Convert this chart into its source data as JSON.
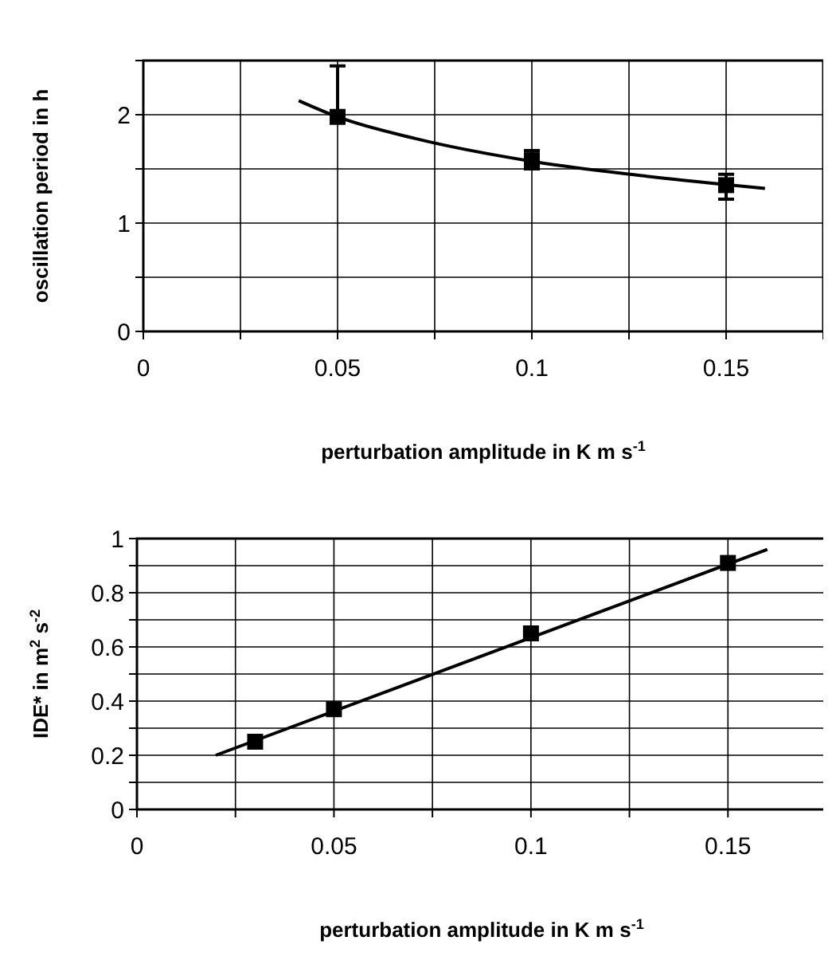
{
  "chart_data": [
    {
      "type": "scatter",
      "xlabel": "perturbation amplitude in K m s$^{-1}$",
      "ylabel": "oscillation period in h",
      "xlim": [
        0,
        0.175
      ],
      "xticks": [
        0,
        {
          "value": 0.025,
          "label": null
        },
        0.05,
        {
          "value": 0.075,
          "label": null
        },
        0.1,
        {
          "value": 0.125,
          "label": null
        },
        0.15,
        {
          "value": 0.175,
          "label": null
        }
      ],
      "ylim": [
        0,
        2.5
      ],
      "yticks": [
        0,
        {
          "value": 0.5,
          "label": null
        },
        1,
        {
          "value": 1.5,
          "label": null
        },
        2,
        {
          "value": 2.5,
          "label": null
        }
      ],
      "grid": true,
      "series": [
        {
          "type": "line",
          "color": "#000000",
          "marker": "none",
          "line_style": "solid",
          "x": [
            0.04,
            0.05,
            0.07,
            0.1,
            0.13,
            0.16
          ],
          "values": [
            2.13,
            1.98,
            1.78,
            1.57,
            1.43,
            1.32
          ]
        },
        {
          "color": "#000000",
          "marker": "square",
          "x": [
            0.05,
            0.1,
            0.15
          ],
          "values": [
            1.98,
            1.58,
            1.35
          ],
          "errors": [
            [
              1.93,
              2.45
            ],
            [
              1.5,
              1.67
            ],
            [
              1.22,
              1.45
            ]
          ]
        }
      ]
    },
    {
      "type": "scatter",
      "xlabel": "perturbation amplitude in K m s$^{-1}$",
      "ylabel": "IDE* in m$^{2}$ s$^{-2}$",
      "xlim": [
        0,
        0.175
      ],
      "xticks": [
        0,
        {
          "value": 0.025,
          "label": null
        },
        0.05,
        {
          "value": 0.075,
          "label": null
        },
        0.1,
        {
          "value": 0.125,
          "label": null
        },
        0.15,
        {
          "value": 0.175,
          "label": null
        }
      ],
      "ylim": [
        0,
        1
      ],
      "yticks": [
        0,
        {
          "value": 0.1,
          "label": null
        },
        0.2,
        {
          "value": 0.3,
          "label": null
        },
        0.4,
        {
          "value": 0.5,
          "label": null
        },
        0.6,
        {
          "value": 0.7,
          "label": null
        },
        0.8,
        {
          "value": 0.9,
          "label": null
        },
        1
      ],
      "grid": true,
      "series": [
        {
          "type": "line",
          "color": "#000000",
          "marker": "none",
          "line_style": "solid",
          "x": [
            0.02,
            0.16
          ],
          "values": [
            0.2,
            0.96
          ]
        },
        {
          "color": "#000000",
          "marker": "square",
          "x": [
            0.03,
            0.05,
            0.1,
            0.15
          ],
          "values": [
            0.25,
            0.37,
            0.65,
            0.91
          ]
        }
      ]
    }
  ]
}
